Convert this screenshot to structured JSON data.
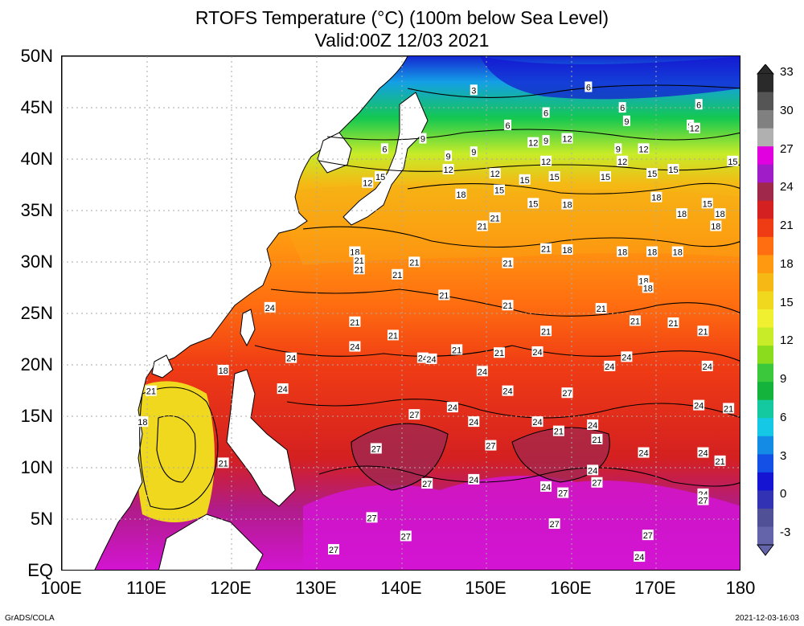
{
  "title_line1": "RTOFS Temperature (°C) (100m below Sea Level)",
  "title_line2": "Valid:00Z 12/03 2021",
  "footer_left": "GrADS/COLA",
  "footer_right": "2021-12-03-16:03",
  "lat_ticks": [
    "50N",
    "45N",
    "40N",
    "35N",
    "30N",
    "25N",
    "20N",
    "15N",
    "10N",
    "5N",
    "EQ"
  ],
  "lon_ticks": [
    "100E",
    "110E",
    "120E",
    "130E",
    "140E",
    "150E",
    "160E",
    "170E",
    "180"
  ],
  "colorbar": {
    "labels": [
      "33",
      "30",
      "27",
      "24",
      "21",
      "18",
      "15",
      "12",
      "9",
      "6",
      "3",
      "0",
      "-3"
    ],
    "colors": [
      "#2a2a2a",
      "#555555",
      "#808080",
      "#b0b0b0",
      "#e000e0",
      "#a01cc8",
      "#a0284a",
      "#d42020",
      "#f03c14",
      "#ff6e10",
      "#ff9a10",
      "#f5b814",
      "#f0d81e",
      "#f0f030",
      "#c8ec28",
      "#8cdc1e",
      "#3cc83c",
      "#14b43c",
      "#14c8a0",
      "#14c8e6",
      "#148ce6",
      "#1450e6",
      "#1414d2",
      "#3232b4",
      "#505096",
      "#6464aa"
    ]
  },
  "contour_labels": [
    {
      "t": "3",
      "lon": 148.5,
      "lat": 46.7
    },
    {
      "t": "6",
      "lon": 162,
      "lat": 47
    },
    {
      "t": "6",
      "lon": 166,
      "lat": 45
    },
    {
      "t": "6",
      "lon": 175,
      "lat": 45.3
    },
    {
      "t": "6",
      "lon": 157,
      "lat": 44.5
    },
    {
      "t": "6",
      "lon": 152.5,
      "lat": 43.3
    },
    {
      "t": "6",
      "lon": 138,
      "lat": 41
    },
    {
      "t": "9",
      "lon": 142.5,
      "lat": 42
    },
    {
      "t": "9",
      "lon": 145.5,
      "lat": 40.3
    },
    {
      "t": "9",
      "lon": 148.5,
      "lat": 40.7
    },
    {
      "t": "9",
      "lon": 157,
      "lat": 41.8
    },
    {
      "t": "9",
      "lon": 166.5,
      "lat": 43.7
    },
    {
      "t": "9",
      "lon": 174,
      "lat": 43.3
    },
    {
      "t": "9",
      "lon": 165.5,
      "lat": 41
    },
    {
      "t": "12",
      "lon": 159.5,
      "lat": 42
    },
    {
      "t": "12",
      "lon": 155.5,
      "lat": 41.6
    },
    {
      "t": "12",
      "lon": 168.5,
      "lat": 41
    },
    {
      "t": "12",
      "lon": 174.5,
      "lat": 43
    },
    {
      "t": "12",
      "lon": 157,
      "lat": 39.8
    },
    {
      "t": "12",
      "lon": 145.5,
      "lat": 39
    },
    {
      "t": "12",
      "lon": 151,
      "lat": 38.6
    },
    {
      "t": "12",
      "lon": 136,
      "lat": 37.7
    },
    {
      "t": "12",
      "lon": 166,
      "lat": 39.8
    },
    {
      "t": "15",
      "lon": 137.5,
      "lat": 38.3
    },
    {
      "t": "15",
      "lon": 151.5,
      "lat": 37
    },
    {
      "t": "15",
      "lon": 154.5,
      "lat": 38
    },
    {
      "t": "15",
      "lon": 158,
      "lat": 38.3
    },
    {
      "t": "15",
      "lon": 164,
      "lat": 38.3
    },
    {
      "t": "15",
      "lon": 169.5,
      "lat": 38.6
    },
    {
      "t": "15",
      "lon": 172,
      "lat": 39
    },
    {
      "t": "15",
      "lon": 179,
      "lat": 39.8
    },
    {
      "t": "15",
      "lon": 155.5,
      "lat": 35.7
    },
    {
      "t": "15",
      "lon": 176,
      "lat": 35.7
    },
    {
      "t": "18",
      "lon": 147,
      "lat": 36.6
    },
    {
      "t": "18",
      "lon": 159.5,
      "lat": 35.6
    },
    {
      "t": "18",
      "lon": 170,
      "lat": 36.3
    },
    {
      "t": "18",
      "lon": 173,
      "lat": 34.7
    },
    {
      "t": "18",
      "lon": 177.5,
      "lat": 34.7
    },
    {
      "t": "18",
      "lon": 177,
      "lat": 33.5
    },
    {
      "t": "18",
      "lon": 159.5,
      "lat": 31.2
    },
    {
      "t": "18",
      "lon": 166,
      "lat": 31
    },
    {
      "t": "18",
      "lon": 169.5,
      "lat": 31
    },
    {
      "t": "18",
      "lon": 172.5,
      "lat": 31
    },
    {
      "t": "18",
      "lon": 168.5,
      "lat": 28.2
    },
    {
      "t": "18",
      "lon": 169,
      "lat": 27.5
    },
    {
      "t": "18",
      "lon": 134.5,
      "lat": 31
    },
    {
      "t": "21",
      "lon": 135,
      "lat": 30.2
    },
    {
      "t": "21",
      "lon": 135,
      "lat": 29.3
    },
    {
      "t": "21",
      "lon": 139.5,
      "lat": 28.8
    },
    {
      "t": "21",
      "lon": 141.5,
      "lat": 30
    },
    {
      "t": "21",
      "lon": 151,
      "lat": 34.3
    },
    {
      "t": "21",
      "lon": 149.5,
      "lat": 33.5
    },
    {
      "t": "21",
      "lon": 157,
      "lat": 31.3
    },
    {
      "t": "21",
      "lon": 152.5,
      "lat": 29.9
    },
    {
      "t": "21",
      "lon": 145,
      "lat": 26.8
    },
    {
      "t": "21",
      "lon": 152.5,
      "lat": 25.8
    },
    {
      "t": "21",
      "lon": 163.5,
      "lat": 25.5
    },
    {
      "t": "21",
      "lon": 167.5,
      "lat": 24.3
    },
    {
      "t": "21",
      "lon": 172,
      "lat": 24.1
    },
    {
      "t": "21",
      "lon": 175.5,
      "lat": 23.3
    },
    {
      "t": "21",
      "lon": 157,
      "lat": 23.3
    },
    {
      "t": "21",
      "lon": 134.5,
      "lat": 24.2
    },
    {
      "t": "21",
      "lon": 139,
      "lat": 22.9
    },
    {
      "t": "21",
      "lon": 146.5,
      "lat": 21.5
    },
    {
      "t": "21",
      "lon": 151.5,
      "lat": 21.2
    },
    {
      "t": "21",
      "lon": 110.5,
      "lat": 17.5
    },
    {
      "t": "21",
      "lon": 119,
      "lat": 10.5
    },
    {
      "t": "21",
      "lon": 158.5,
      "lat": 13.6
    },
    {
      "t": "21",
      "lon": 163,
      "lat": 12.8
    },
    {
      "t": "21",
      "lon": 177.5,
      "lat": 10.7
    },
    {
      "t": "21",
      "lon": 178.5,
      "lat": 15.8
    },
    {
      "t": "18",
      "lon": 109.5,
      "lat": 14.5
    },
    {
      "t": "18",
      "lon": 119,
      "lat": 19.5
    },
    {
      "t": "24",
      "lon": 124.5,
      "lat": 25.6
    },
    {
      "t": "24",
      "lon": 134.5,
      "lat": 21.8
    },
    {
      "t": "24",
      "lon": 127,
      "lat": 20.7
    },
    {
      "t": "24",
      "lon": 142.5,
      "lat": 20.7
    },
    {
      "t": "24",
      "lon": 143.5,
      "lat": 20.6
    },
    {
      "t": "24",
      "lon": 126,
      "lat": 17.7
    },
    {
      "t": "24",
      "lon": 149.5,
      "lat": 19.4
    },
    {
      "t": "24",
      "lon": 152.5,
      "lat": 17.5
    },
    {
      "t": "24",
      "lon": 156,
      "lat": 21.3
    },
    {
      "t": "24",
      "lon": 164.5,
      "lat": 19.9
    },
    {
      "t": "24",
      "lon": 166.5,
      "lat": 20.8
    },
    {
      "t": "24",
      "lon": 176,
      "lat": 19.9
    },
    {
      "t": "24",
      "lon": 175,
      "lat": 16.1
    },
    {
      "t": "24",
      "lon": 146,
      "lat": 15.9
    },
    {
      "t": "24",
      "lon": 148.5,
      "lat": 14.5
    },
    {
      "t": "24",
      "lon": 156,
      "lat": 14.5
    },
    {
      "t": "24",
      "lon": 162.5,
      "lat": 14.2
    },
    {
      "t": "24",
      "lon": 168.5,
      "lat": 11.5
    },
    {
      "t": "24",
      "lon": 175.5,
      "lat": 11.5
    },
    {
      "t": "24",
      "lon": 162.5,
      "lat": 9.8
    },
    {
      "t": "24",
      "lon": 148.5,
      "lat": 8.9
    },
    {
      "t": "24",
      "lon": 157,
      "lat": 8.2
    },
    {
      "t": "24",
      "lon": 175.5,
      "lat": 7.5
    },
    {
      "t": "24",
      "lon": 168,
      "lat": 1.4
    },
    {
      "t": "27",
      "lon": 159.5,
      "lat": 17.3
    },
    {
      "t": "27",
      "lon": 141.5,
      "lat": 15.2
    },
    {
      "t": "27",
      "lon": 137,
      "lat": 11.9
    },
    {
      "t": "27",
      "lon": 150.5,
      "lat": 12.2
    },
    {
      "t": "27",
      "lon": 143,
      "lat": 8.5
    },
    {
      "t": "27",
      "lon": 159,
      "lat": 7.6
    },
    {
      "t": "27",
      "lon": 163,
      "lat": 8.6
    },
    {
      "t": "27",
      "lon": 175.5,
      "lat": 6.9
    },
    {
      "t": "27",
      "lon": 136.5,
      "lat": 5.2
    },
    {
      "t": "27",
      "lon": 158,
      "lat": 4.6
    },
    {
      "t": "27",
      "lon": 140.5,
      "lat": 3.4
    },
    {
      "t": "27",
      "lon": 169,
      "lat": 3.5
    },
    {
      "t": "27",
      "lon": 132,
      "lat": 2.1
    }
  ]
}
